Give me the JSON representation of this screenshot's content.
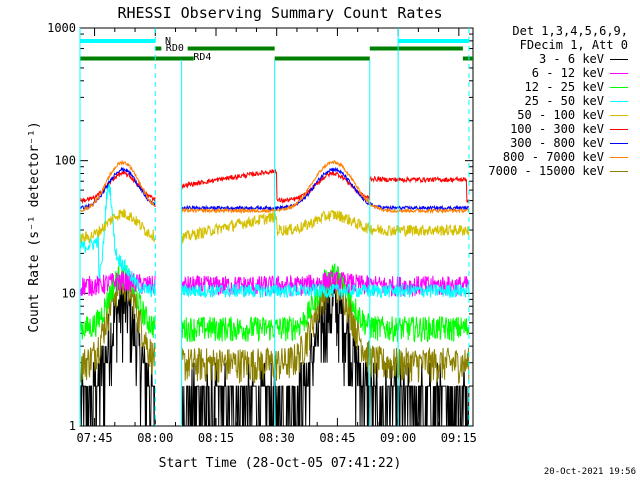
{
  "chart_data": {
    "type": "line",
    "title": "RHESSI Observing Summary Count Rates",
    "xlabel": "Start Time (28-Oct-05 07:41:22)",
    "ylabel": "Count Rate (s⁻¹ detector⁻¹)",
    "y_scale": "log",
    "ylim": [
      1,
      1000
    ],
    "y_ticks": [
      {
        "label": "1000",
        "value": 1000
      },
      {
        "label": "100",
        "value": 100
      },
      {
        "label": "10",
        "value": 10
      },
      {
        "label": "1",
        "value": 1
      }
    ],
    "x_range_min": [
      41.4,
      138.5
    ],
    "x_ticks": [
      {
        "label": "07:45",
        "minute": 45
      },
      {
        "label": "08:00",
        "minute": 60
      },
      {
        "label": "08:15",
        "minute": 75
      },
      {
        "label": "08:30",
        "minute": 90
      },
      {
        "label": "08:45",
        "minute": 105
      },
      {
        "label": "09:00",
        "minute": 120
      },
      {
        "label": "09:15",
        "minute": 135
      }
    ],
    "legend_header": [
      "Det 1,3,4,5,6,9,",
      "FDecim 1, Att 0"
    ],
    "series": [
      {
        "name": "3 - 6 keV",
        "color": "#000000"
      },
      {
        "name": "6 - 12 keV",
        "color": "#ff00ff"
      },
      {
        "name": "12 - 25 keV",
        "color": "#00ff00"
      },
      {
        "name": "25 - 50 keV",
        "color": "#00ffff"
      },
      {
        "name": "50 - 100 keV",
        "color": "#d4c000"
      },
      {
        "name": "100 - 300 keV",
        "color": "#ff0000"
      },
      {
        "name": "300 - 800 keV",
        "color": "#0000ff"
      },
      {
        "name": "800 - 7000 keV",
        "color": "#ff8000"
      },
      {
        "name": "7000 - 15000 keV",
        "color": "#8b8000"
      }
    ],
    "annotations": {
      "night_label": "N",
      "night_bars": [
        [
          41.4,
          60.0
        ],
        [
          120.0,
          137.5
        ]
      ],
      "saa_labels": [
        "RD0",
        "RD4"
      ],
      "rd0_bars": [
        [
          60.0,
          61.5
        ],
        [
          68.0,
          89.5
        ],
        [
          113.0,
          136.0
        ]
      ],
      "rd4_bars": [
        [
          41.4,
          69.5
        ],
        [
          89.5,
          113.0
        ],
        [
          136.0,
          138.5
        ]
      ],
      "night_boundaries_min": [
        41.4,
        120.0
      ],
      "day_boundaries_min": [
        60.0,
        137.5
      ],
      "saa_boundaries_min": [
        66.5,
        89.5,
        113.0
      ]
    }
  },
  "timestamp": "20-Oct-2021 19:56"
}
